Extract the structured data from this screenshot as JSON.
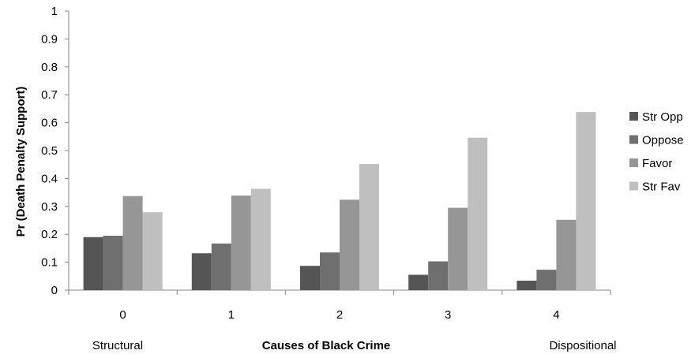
{
  "chart_data": {
    "type": "bar",
    "title": "",
    "xlabel": "Causes of Black Crime",
    "ylabel": "Pr (Death Penalty Support)",
    "ylim": [
      0,
      1
    ],
    "yticks": [
      "0",
      "0.1",
      "0.2",
      "0.3",
      "0.4",
      "0.5",
      "0.6",
      "0.7",
      "0.8",
      "0.9",
      "1"
    ],
    "categories": [
      "0",
      "1",
      "2",
      "3",
      "4"
    ],
    "annotations": {
      "left": "Structural",
      "right": "Dispositional"
    },
    "series": [
      {
        "name": "Str Opp",
        "color": "#555555",
        "values": [
          0.19,
          0.132,
          0.087,
          0.055,
          0.034
        ]
      },
      {
        "name": "Oppose",
        "color": "#6f6f6f",
        "values": [
          0.195,
          0.167,
          0.135,
          0.103,
          0.073
        ]
      },
      {
        "name": "Favor",
        "color": "#969696",
        "values": [
          0.337,
          0.339,
          0.324,
          0.295,
          0.252
        ]
      },
      {
        "name": "Str Fav",
        "color": "#bfbfbf",
        "values": [
          0.279,
          0.363,
          0.452,
          0.546,
          0.638
        ]
      }
    ],
    "grid": false,
    "legend_position": "right"
  }
}
